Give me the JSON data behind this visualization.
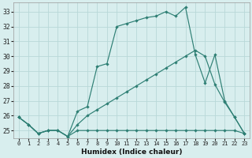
{
  "xlabel": "Humidex (Indice chaleur)",
  "bg_color": "#d8eeee",
  "grid_color": "#b8d8d8",
  "line_color": "#2e7f74",
  "xlim": [
    -0.5,
    23.5
  ],
  "ylim": [
    24.5,
    33.6
  ],
  "xticks": [
    0,
    1,
    2,
    3,
    4,
    5,
    6,
    7,
    8,
    9,
    10,
    11,
    12,
    13,
    14,
    15,
    16,
    17,
    18,
    19,
    20,
    21,
    22,
    23
  ],
  "yticks": [
    25,
    26,
    27,
    28,
    29,
    30,
    31,
    32,
    33
  ],
  "line1_x": [
    0,
    1,
    2,
    3,
    4,
    5,
    6,
    7,
    8,
    9,
    10,
    11,
    12,
    13,
    14,
    15,
    16,
    17,
    18,
    19,
    20,
    21,
    22,
    23
  ],
  "line1_y": [
    25.9,
    25.4,
    24.8,
    25.0,
    25.0,
    24.6,
    25.0,
    25.0,
    25.0,
    25.0,
    25.0,
    25.0,
    25.0,
    25.0,
    25.0,
    25.0,
    25.0,
    25.0,
    25.0,
    25.0,
    25.0,
    25.0,
    25.0,
    24.8
  ],
  "line2_x": [
    0,
    1,
    2,
    3,
    4,
    5,
    6,
    7,
    8,
    9,
    10,
    11,
    12,
    13,
    14,
    15,
    16,
    17,
    18,
    19,
    20,
    21,
    22,
    23
  ],
  "line2_y": [
    25.9,
    25.4,
    24.8,
    25.0,
    25.0,
    24.6,
    26.3,
    26.6,
    29.3,
    29.5,
    32.0,
    32.2,
    32.4,
    32.6,
    32.7,
    33.0,
    32.7,
    33.3,
    30.1,
    28.2,
    30.1,
    27.0,
    25.9,
    24.8
  ],
  "line3_x": [
    0,
    1,
    2,
    3,
    4,
    5,
    6,
    7,
    8,
    9,
    10,
    11,
    12,
    13,
    14,
    15,
    16,
    17,
    18,
    19,
    20,
    21,
    22,
    23
  ],
  "line3_y": [
    25.9,
    25.4,
    24.8,
    25.0,
    25.0,
    24.6,
    25.4,
    26.0,
    26.4,
    26.8,
    27.2,
    27.6,
    28.0,
    28.4,
    28.8,
    29.2,
    29.6,
    30.0,
    30.4,
    30.0,
    28.1,
    26.9,
    25.9,
    24.8
  ]
}
